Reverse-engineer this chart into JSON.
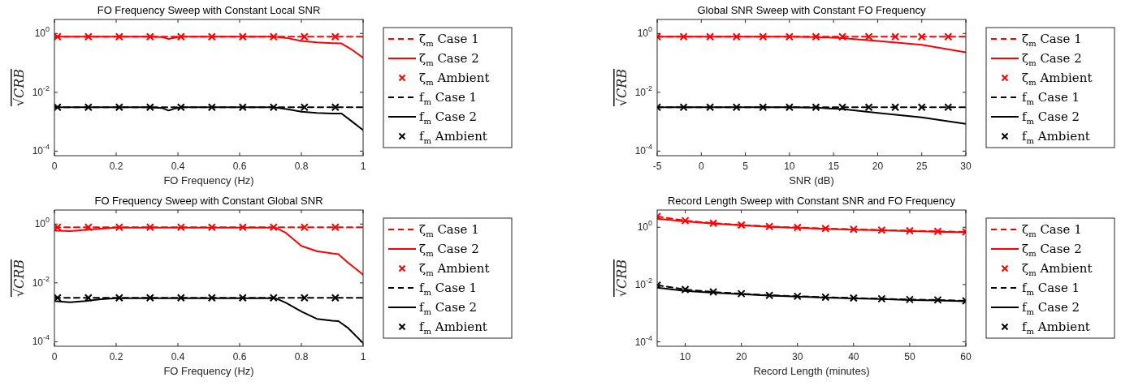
{
  "chart_data": [
    {
      "type": "line",
      "title": "FO Frequency Sweep with Constant Local SNR",
      "xlabel": "FO Frequency (Hz)",
      "ylabel": "√CRB",
      "log": "y",
      "grid": false,
      "legend": "right",
      "xlim": [
        0,
        1
      ],
      "xticks": [
        0,
        0.2,
        0.4,
        0.6,
        0.8,
        1
      ],
      "ylim": [
        7e-05,
        3
      ],
      "yticks": [
        {
          "value": 0.0001,
          "label": "10$^{-4}$"
        },
        {
          "value": 0.01,
          "label": "10$^{-2}$"
        },
        {
          "value": 1,
          "label": "10$^{0}$"
        }
      ],
      "series": [
        {
          "name": "ζ$_{m}$ Case 1",
          "color": "#ff0000",
          "type": "line",
          "line_style": "dashed",
          "marker": "none",
          "x": [
            0,
            0.5,
            1
          ],
          "values": [
            0.78,
            0.78,
            0.78
          ]
        },
        {
          "name": "ζ$_{m}$ Case 2",
          "color": "#ff0000",
          "type": "line",
          "line_style": "solid",
          "marker": "none",
          "x": [
            0,
            0.1,
            0.2,
            0.3,
            0.35,
            0.37,
            0.39,
            0.41,
            0.5,
            0.6,
            0.7,
            0.72,
            0.76,
            0.8,
            0.85,
            0.9,
            0.93,
            0.96,
            1
          ],
          "values": [
            0.78,
            0.78,
            0.78,
            0.78,
            0.75,
            0.65,
            0.72,
            0.78,
            0.78,
            0.78,
            0.78,
            0.77,
            0.68,
            0.56,
            0.5,
            0.47,
            0.46,
            0.3,
            0.15
          ]
        },
        {
          "name": "ζ$_{m}$ Ambient",
          "color": "#ff0000",
          "type": "scatter",
          "marker": "cross",
          "x": [
            0.01,
            0.11,
            0.21,
            0.31,
            0.41,
            0.51,
            0.61,
            0.71,
            0.81,
            0.91
          ],
          "values": [
            0.78,
            0.78,
            0.78,
            0.78,
            0.78,
            0.78,
            0.78,
            0.78,
            0.78,
            0.78
          ]
        },
        {
          "name": "f$_{m}$ Case 1",
          "color": "#000000",
          "type": "line",
          "line_style": "dashed",
          "marker": "none",
          "x": [
            0,
            0.5,
            1
          ],
          "values": [
            0.0031,
            0.0031,
            0.0031
          ]
        },
        {
          "name": "f$_{m}$ Case 2",
          "color": "#000000",
          "type": "line",
          "line_style": "solid",
          "marker": "none",
          "x": [
            0,
            0.1,
            0.2,
            0.3,
            0.35,
            0.37,
            0.39,
            0.41,
            0.5,
            0.6,
            0.7,
            0.72,
            0.76,
            0.8,
            0.85,
            0.9,
            0.93,
            0.96,
            1
          ],
          "values": [
            0.0031,
            0.0031,
            0.0031,
            0.0031,
            0.0029,
            0.0024,
            0.0028,
            0.0031,
            0.0031,
            0.0031,
            0.0031,
            0.003,
            0.0026,
            0.0022,
            0.002,
            0.0019,
            0.0019,
            0.0011,
            0.00052
          ]
        },
        {
          "name": "f$_{m}$ Ambient",
          "color": "#000000",
          "type": "scatter",
          "marker": "cross",
          "x": [
            0.01,
            0.11,
            0.21,
            0.31,
            0.41,
            0.51,
            0.61,
            0.71,
            0.81,
            0.91
          ],
          "values": [
            0.0031,
            0.0031,
            0.0031,
            0.0031,
            0.0031,
            0.0031,
            0.0031,
            0.0031,
            0.0031,
            0.0031
          ]
        }
      ]
    },
    {
      "type": "line",
      "title": "Global SNR Sweep with Constant FO Frequency",
      "xlabel": "SNR (dB)",
      "ylabel": "√CRB",
      "log": "y",
      "grid": false,
      "legend": "right",
      "xlim": [
        -5,
        30
      ],
      "xticks": [
        -5,
        0,
        5,
        10,
        15,
        20,
        25,
        30
      ],
      "ylim": [
        7e-05,
        3
      ],
      "yticks": [
        {
          "value": 0.0001,
          "label": "10$^{-4}$"
        },
        {
          "value": 0.01,
          "label": "10$^{-2}$"
        },
        {
          "value": 1,
          "label": "10$^{0}$"
        }
      ],
      "series": [
        {
          "name": "ζ$_{m}$ Case 1",
          "color": "#ff0000",
          "type": "line",
          "line_style": "dashed",
          "marker": "none",
          "x": [
            -5,
            30
          ],
          "values": [
            0.78,
            0.78
          ]
        },
        {
          "name": "ζ$_{m}$ Case 2",
          "color": "#ff0000",
          "type": "line",
          "line_style": "solid",
          "marker": "none",
          "x": [
            -5,
            0,
            5,
            10,
            13,
            16,
            20,
            25,
            30
          ],
          "values": [
            0.78,
            0.78,
            0.78,
            0.78,
            0.76,
            0.7,
            0.56,
            0.41,
            0.23
          ]
        },
        {
          "name": "ζ$_{m}$ Ambient",
          "color": "#ff0000",
          "type": "scatter",
          "marker": "cross",
          "x": [
            -5,
            -2,
            1,
            4,
            7,
            10,
            13,
            16,
            19,
            22,
            25,
            28
          ],
          "values": [
            0.78,
            0.78,
            0.78,
            0.78,
            0.78,
            0.78,
            0.78,
            0.78,
            0.78,
            0.78,
            0.78,
            0.78
          ]
        },
        {
          "name": "f$_{m}$ Case 1",
          "color": "#000000",
          "type": "line",
          "line_style": "dashed",
          "marker": "none",
          "x": [
            -5,
            30
          ],
          "values": [
            0.0031,
            0.0031
          ]
        },
        {
          "name": "f$_{m}$ Case 2",
          "color": "#000000",
          "type": "line",
          "line_style": "solid",
          "marker": "none",
          "x": [
            -5,
            0,
            5,
            10,
            13,
            16,
            20,
            25,
            30
          ],
          "values": [
            0.0031,
            0.0031,
            0.0031,
            0.0031,
            0.003,
            0.0027,
            0.002,
            0.0014,
            0.00085
          ]
        },
        {
          "name": "f$_{m}$ Ambient",
          "color": "#000000",
          "type": "scatter",
          "marker": "cross",
          "x": [
            -5,
            -2,
            1,
            4,
            7,
            10,
            13,
            16,
            19,
            22,
            25,
            28
          ],
          "values": [
            0.0031,
            0.0031,
            0.0031,
            0.0031,
            0.0031,
            0.0031,
            0.0031,
            0.0031,
            0.0031,
            0.0031,
            0.0031,
            0.0031
          ]
        }
      ]
    },
    {
      "type": "line",
      "title": "FO Frequency Sweep with Constant Global SNR",
      "xlabel": "FO Frequency (Hz)",
      "ylabel": "√CRB",
      "log": "y",
      "grid": false,
      "legend": "right",
      "xlim": [
        0,
        1
      ],
      "xticks": [
        0,
        0.2,
        0.4,
        0.6,
        0.8,
        1
      ],
      "ylim": [
        7e-05,
        3
      ],
      "yticks": [
        {
          "value": 0.0001,
          "label": "10$^{-4}$"
        },
        {
          "value": 0.01,
          "label": "10$^{-2}$"
        },
        {
          "value": 1,
          "label": "10$^{0}$"
        }
      ],
      "series": [
        {
          "name": "ζ$_{m}$ Case 1",
          "color": "#ff0000",
          "type": "line",
          "line_style": "dashed",
          "marker": "none",
          "x": [
            0,
            0.5,
            1
          ],
          "values": [
            0.78,
            0.78,
            0.78
          ]
        },
        {
          "name": "ζ$_{m}$ Case 2",
          "color": "#ff0000",
          "type": "line",
          "line_style": "solid",
          "marker": "none",
          "x": [
            0,
            0.05,
            0.1,
            0.15,
            0.2,
            0.3,
            0.5,
            0.7,
            0.72,
            0.75,
            0.8,
            0.85,
            0.9,
            0.92,
            0.95,
            1
          ],
          "values": [
            0.6,
            0.58,
            0.63,
            0.7,
            0.75,
            0.75,
            0.75,
            0.75,
            0.73,
            0.5,
            0.18,
            0.12,
            0.1,
            0.095,
            0.05,
            0.019
          ]
        },
        {
          "name": "ζ$_{m}$ Ambient",
          "color": "#ff0000",
          "type": "scatter",
          "marker": "cross",
          "x": [
            0.01,
            0.11,
            0.21,
            0.31,
            0.41,
            0.51,
            0.61,
            0.71,
            0.81,
            0.91
          ],
          "values": [
            0.78,
            0.78,
            0.78,
            0.78,
            0.78,
            0.78,
            0.78,
            0.78,
            0.78,
            0.78
          ]
        },
        {
          "name": "f$_{m}$ Case 1",
          "color": "#000000",
          "type": "line",
          "line_style": "dashed",
          "marker": "none",
          "x": [
            0,
            0.5,
            1
          ],
          "values": [
            0.0031,
            0.0031,
            0.0031
          ]
        },
        {
          "name": "f$_{m}$ Case 2",
          "color": "#000000",
          "type": "line",
          "line_style": "solid",
          "marker": "none",
          "x": [
            0,
            0.05,
            0.1,
            0.15,
            0.2,
            0.3,
            0.5,
            0.7,
            0.72,
            0.75,
            0.8,
            0.85,
            0.9,
            0.92,
            0.95,
            1
          ],
          "values": [
            0.0024,
            0.0022,
            0.0024,
            0.0028,
            0.003,
            0.003,
            0.003,
            0.003,
            0.0029,
            0.0021,
            0.00107,
            0.0006,
            0.00052,
            0.0005,
            0.0003,
            9e-05
          ]
        },
        {
          "name": "f$_{m}$ Ambient",
          "color": "#000000",
          "type": "scatter",
          "marker": "cross",
          "x": [
            0.01,
            0.11,
            0.21,
            0.31,
            0.41,
            0.51,
            0.61,
            0.71,
            0.81,
            0.91
          ],
          "values": [
            0.0031,
            0.0031,
            0.0031,
            0.0031,
            0.0031,
            0.0031,
            0.0031,
            0.0031,
            0.0031,
            0.0031
          ]
        }
      ]
    },
    {
      "type": "line",
      "title": "Record Length Sweep with Constant SNR and FO Frequency",
      "xlabel": "Record Length (minutes)",
      "ylabel": "√CRB",
      "log": "y",
      "grid": false,
      "legend": "right",
      "xlim": [
        5,
        60
      ],
      "xticks": [
        10,
        20,
        30,
        40,
        50,
        60
      ],
      "ylim": [
        7e-05,
        4
      ],
      "yticks": [
        {
          "value": 0.0001,
          "label": "10$^{-4}$"
        },
        {
          "value": 0.01,
          "label": "10$^{-2}$"
        },
        {
          "value": 1,
          "label": "10$^{0}$"
        }
      ],
      "series": [
        {
          "name": "ζ$_{m}$ Case 1",
          "color": "#ff0000",
          "type": "line",
          "line_style": "dashed",
          "marker": "none",
          "x": [
            5,
            10,
            15,
            20,
            25,
            30,
            35,
            40,
            45,
            50,
            55,
            60
          ],
          "values": [
            2.4,
            1.7,
            1.39,
            1.2,
            1.07,
            0.98,
            0.91,
            0.85,
            0.8,
            0.76,
            0.72,
            0.69
          ]
        },
        {
          "name": "ζ$_{m}$ Case 2",
          "color": "#ff0000",
          "type": "line",
          "line_style": "solid",
          "marker": "none",
          "x": [
            5,
            10,
            15,
            20,
            25,
            30,
            35,
            40,
            45,
            50,
            55,
            60
          ],
          "values": [
            2.0,
            1.6,
            1.35,
            1.17,
            1.04,
            0.95,
            0.88,
            0.82,
            0.78,
            0.74,
            0.7,
            0.67
          ]
        },
        {
          "name": "ζ$_{m}$ Ambient",
          "color": "#ff0000",
          "type": "scatter",
          "marker": "cross",
          "x": [
            5,
            10,
            15,
            20,
            25,
            30,
            35,
            40,
            45,
            50,
            55,
            60
          ],
          "values": [
            2.4,
            1.7,
            1.39,
            1.2,
            1.07,
            0.98,
            0.91,
            0.85,
            0.8,
            0.76,
            0.72,
            0.69
          ]
        },
        {
          "name": "f$_{m}$ Case 1",
          "color": "#000000",
          "type": "line",
          "line_style": "dashed",
          "marker": "none",
          "x": [
            5,
            10,
            15,
            20,
            25,
            30,
            35,
            40,
            45,
            50,
            55,
            60
          ],
          "values": [
            0.0095,
            0.0067,
            0.0055,
            0.0048,
            0.0042,
            0.0039,
            0.0036,
            0.0034,
            0.0032,
            0.003,
            0.0029,
            0.0027
          ]
        },
        {
          "name": "f$_{m}$ Case 2",
          "color": "#000000",
          "type": "line",
          "line_style": "solid",
          "marker": "none",
          "x": [
            5,
            10,
            15,
            20,
            25,
            30,
            35,
            40,
            45,
            50,
            55,
            60
          ],
          "values": [
            0.0078,
            0.006,
            0.0052,
            0.0046,
            0.0041,
            0.0038,
            0.0035,
            0.0033,
            0.0031,
            0.0029,
            0.0028,
            0.0026
          ]
        },
        {
          "name": "f$_{m}$ Ambient",
          "color": "#000000",
          "type": "scatter",
          "marker": "cross",
          "x": [
            5,
            10,
            15,
            20,
            25,
            30,
            35,
            40,
            45,
            50,
            55,
            60
          ],
          "values": [
            0.0095,
            0.0067,
            0.0055,
            0.0048,
            0.0042,
            0.0039,
            0.0036,
            0.0034,
            0.0032,
            0.003,
            0.0029,
            0.0027
          ]
        }
      ]
    }
  ]
}
